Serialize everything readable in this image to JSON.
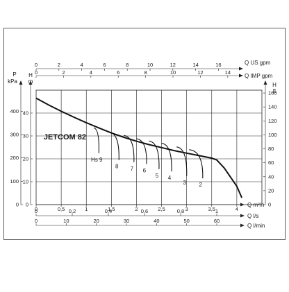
{
  "chart_data": {
    "type": "line",
    "title": "JETCOM 82",
    "x_primary": {
      "label": "Q m³/h",
      "ticks": [
        "0",
        "0,5",
        "1",
        "1,5",
        "2",
        "2,5",
        "3",
        "3,5",
        "4"
      ],
      "range": [
        0,
        4.5
      ]
    },
    "x_secondary_bottom": [
      {
        "label": "Q l/s",
        "ticks": [
          "0",
          "0,2",
          "0,4",
          "0,6",
          "0,8",
          "1"
        ]
      },
      {
        "label": "Q l/min",
        "ticks": [
          "0",
          "10",
          "20",
          "30",
          "40",
          "50",
          "60"
        ]
      }
    ],
    "x_secondary_top": [
      {
        "label": "Q US gpm",
        "ticks": [
          "0",
          "2",
          "4",
          "6",
          "8",
          "10",
          "12",
          "14",
          "16"
        ]
      },
      {
        "label": "Q IMP gpm",
        "ticks": [
          "0",
          "2",
          "4",
          "6",
          "8",
          "10",
          "12",
          "14"
        ]
      }
    ],
    "y_left": [
      {
        "label": "P kPa",
        "ticks": [
          "0",
          "100",
          "200",
          "300",
          "400"
        ]
      },
      {
        "label": "H m",
        "ticks": [
          "0",
          "10",
          "20",
          "30",
          "40"
        ],
        "range": [
          0,
          50
        ]
      }
    ],
    "y_right": {
      "label": "H ft",
      "ticks": [
        "0",
        "20",
        "40",
        "60",
        "80",
        "100",
        "120",
        "140",
        "160"
      ]
    },
    "series": [
      {
        "x": [
          0,
          0.25,
          0.5,
          0.75,
          1.0,
          1.25,
          1.5,
          1.75,
          2.0,
          2.25,
          2.5,
          2.75,
          3.0,
          3.25,
          3.5,
          3.6,
          3.75,
          4.0,
          4.1
        ],
        "y": [
          46.5,
          43.5,
          40.8,
          38.2,
          35.8,
          33.5,
          31.3,
          29.4,
          27.7,
          26.2,
          24.9,
          23.6,
          22.5,
          21.4,
          20.3,
          19.5,
          16,
          8,
          3
        ]
      }
    ],
    "suction_curves": [
      {
        "label": "Hs 9",
        "start": [
          1.15,
          33.5
        ],
        "end": [
          1.25,
          22.5
        ]
      },
      {
        "label": "8",
        "start": [
          1.45,
          31.8
        ],
        "end": [
          1.65,
          19.5
        ]
      },
      {
        "label": "7",
        "start": [
          1.75,
          30.2
        ],
        "end": [
          1.95,
          18.5
        ]
      },
      {
        "label": "6",
        "start": [
          2.0,
          28.8
        ],
        "end": [
          2.2,
          17.8
        ]
      },
      {
        "label": "5",
        "start": [
          2.25,
          27.8
        ],
        "end": [
          2.45,
          15.5
        ]
      },
      {
        "label": "4",
        "start": [
          2.5,
          26.8
        ],
        "end": [
          2.7,
          14.5
        ]
      },
      {
        "label": "3",
        "start": [
          2.8,
          25.2
        ],
        "end": [
          3.0,
          12.5
        ]
      },
      {
        "label": "2",
        "start": [
          3.05,
          24.0
        ],
        "end": [
          3.32,
          11.5
        ]
      }
    ],
    "grid": true
  }
}
